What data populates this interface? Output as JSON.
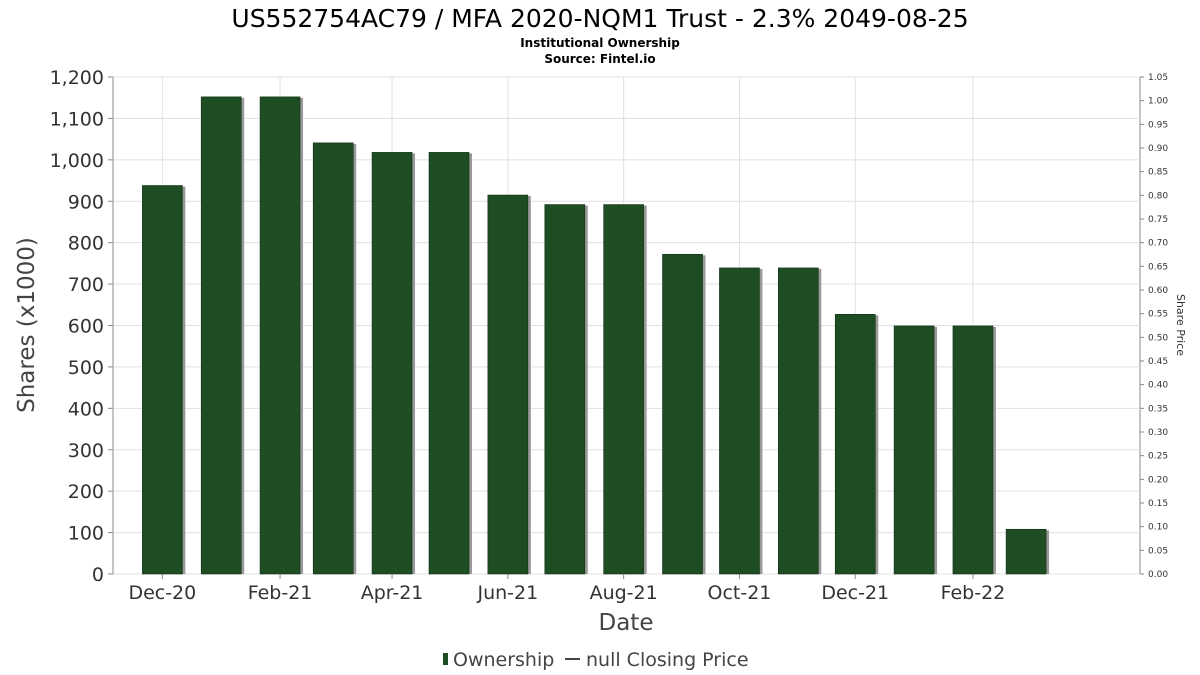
{
  "chart_data": {
    "type": "bar",
    "title": "US552754AC79 / MFA 2020-NQM1 Trust - 2.3% 2049-08-25",
    "subtitle_lines": [
      "Institutional Ownership",
      "Source: Fintel.io"
    ],
    "xlabel": "Date",
    "ylabel": "Shares (x1000)",
    "y2label": "Share Price",
    "ylim": [
      0,
      1200
    ],
    "y_ticks": [
      "0",
      "100",
      "200",
      "300",
      "400",
      "500",
      "600",
      "700",
      "800",
      "900",
      "1,000",
      "1,100",
      "1,200"
    ],
    "y2lim": [
      0,
      1.05
    ],
    "y2_ticks": [
      "0.00",
      "0.05",
      "0.10",
      "0.15",
      "0.20",
      "0.25",
      "0.30",
      "0.35",
      "0.40",
      "0.45",
      "0.50",
      "0.55",
      "0.60",
      "0.65",
      "0.70",
      "0.75",
      "0.80",
      "0.85",
      "0.90",
      "0.95",
      "1.00",
      "1.05"
    ],
    "x_tick_labels": [
      "Dec-20",
      "Feb-21",
      "Apr-21",
      "Jun-21",
      "Aug-21",
      "Oct-21",
      "Dec-21",
      "Feb-22"
    ],
    "x_range": [
      "2020-11-05",
      "2022-04-30"
    ],
    "grid": true,
    "series": [
      {
        "name": "Ownership",
        "color": "#1e4d23",
        "dates": [
          "2020-12-01",
          "2021-01-01",
          "2021-02-01",
          "2021-03-01",
          "2021-04-01",
          "2021-05-01",
          "2021-06-01",
          "2021-07-01",
          "2021-08-01",
          "2021-09-01",
          "2021-10-01",
          "2021-11-01",
          "2021-12-01",
          "2022-01-01",
          "2022-02-01",
          "2022-03-01"
        ],
        "values": [
          938,
          1152,
          1152,
          1041,
          1018,
          1018,
          915,
          892,
          892,
          772,
          739,
          739,
          627,
          599,
          599,
          108
        ]
      },
      {
        "name": "null Closing Price",
        "color": "#444444",
        "values": []
      }
    ],
    "legend_position": "bottom"
  }
}
